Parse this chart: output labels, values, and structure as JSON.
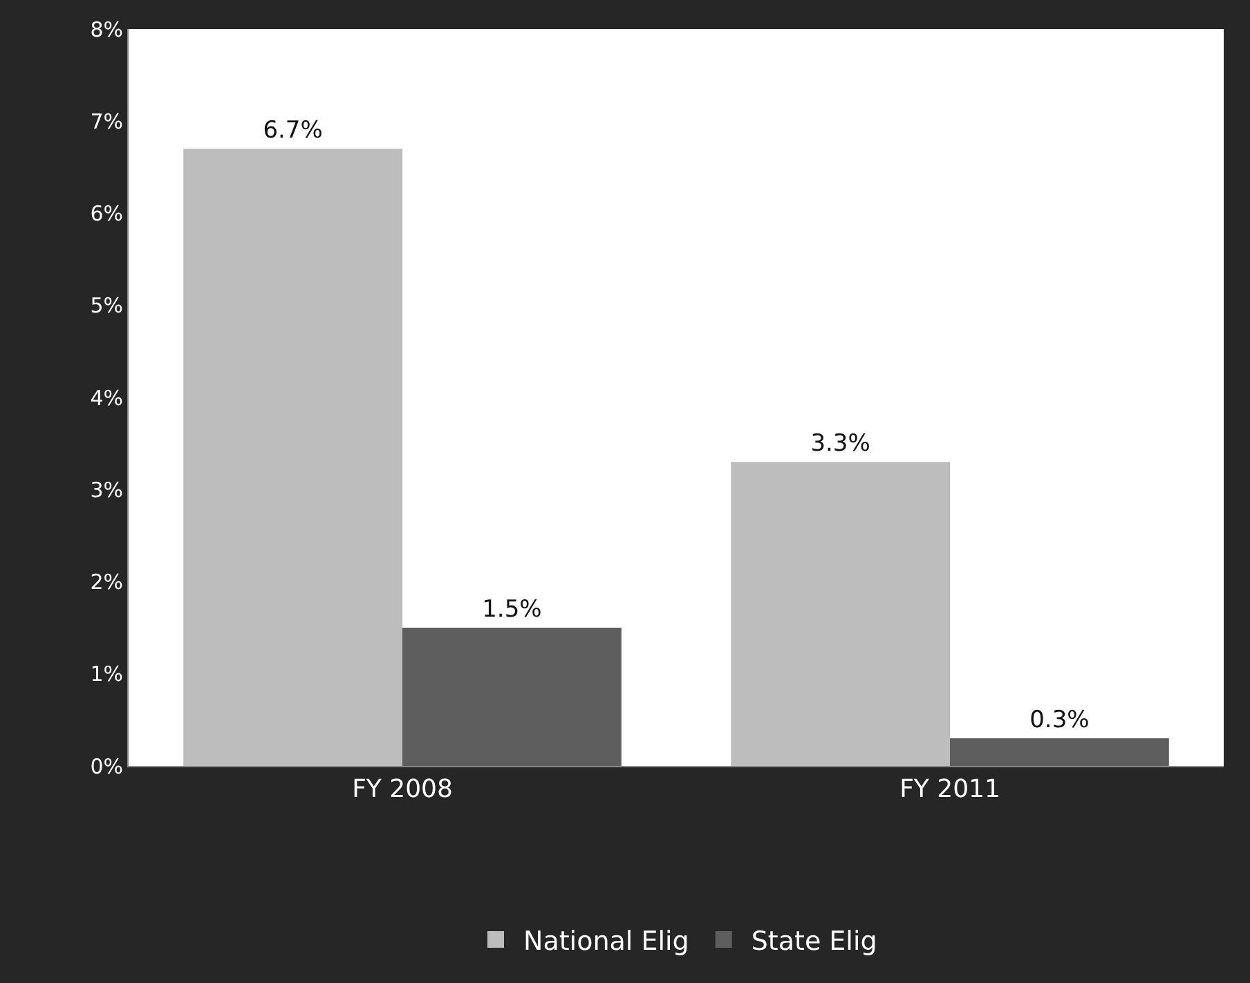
{
  "chart_data": {
    "type": "bar",
    "categories": [
      "FY 2008",
      "FY 2011"
    ],
    "series": [
      {
        "name": "National Elig",
        "color": "#bdbdbd",
        "values": [
          6.7,
          3.3
        ],
        "value_labels": [
          "6.7%",
          "3.3%"
        ]
      },
      {
        "name": "State Elig",
        "color": "#5e5e5e",
        "values": [
          1.5,
          0.3
        ],
        "value_labels": [
          "1.5%",
          "0.3%"
        ]
      }
    ],
    "ylim": [
      0,
      8
    ],
    "yticks": [
      {
        "value": 0,
        "label": "0%"
      },
      {
        "value": 1,
        "label": "1%"
      },
      {
        "value": 2,
        "label": "2%"
      },
      {
        "value": 3,
        "label": "3%"
      },
      {
        "value": 4,
        "label": "4%"
      },
      {
        "value": 5,
        "label": "5%"
      },
      {
        "value": 6,
        "label": "6%"
      },
      {
        "value": 7,
        "label": "7%"
      },
      {
        "value": 8,
        "label": "8%"
      }
    ],
    "legend": "bottom"
  }
}
